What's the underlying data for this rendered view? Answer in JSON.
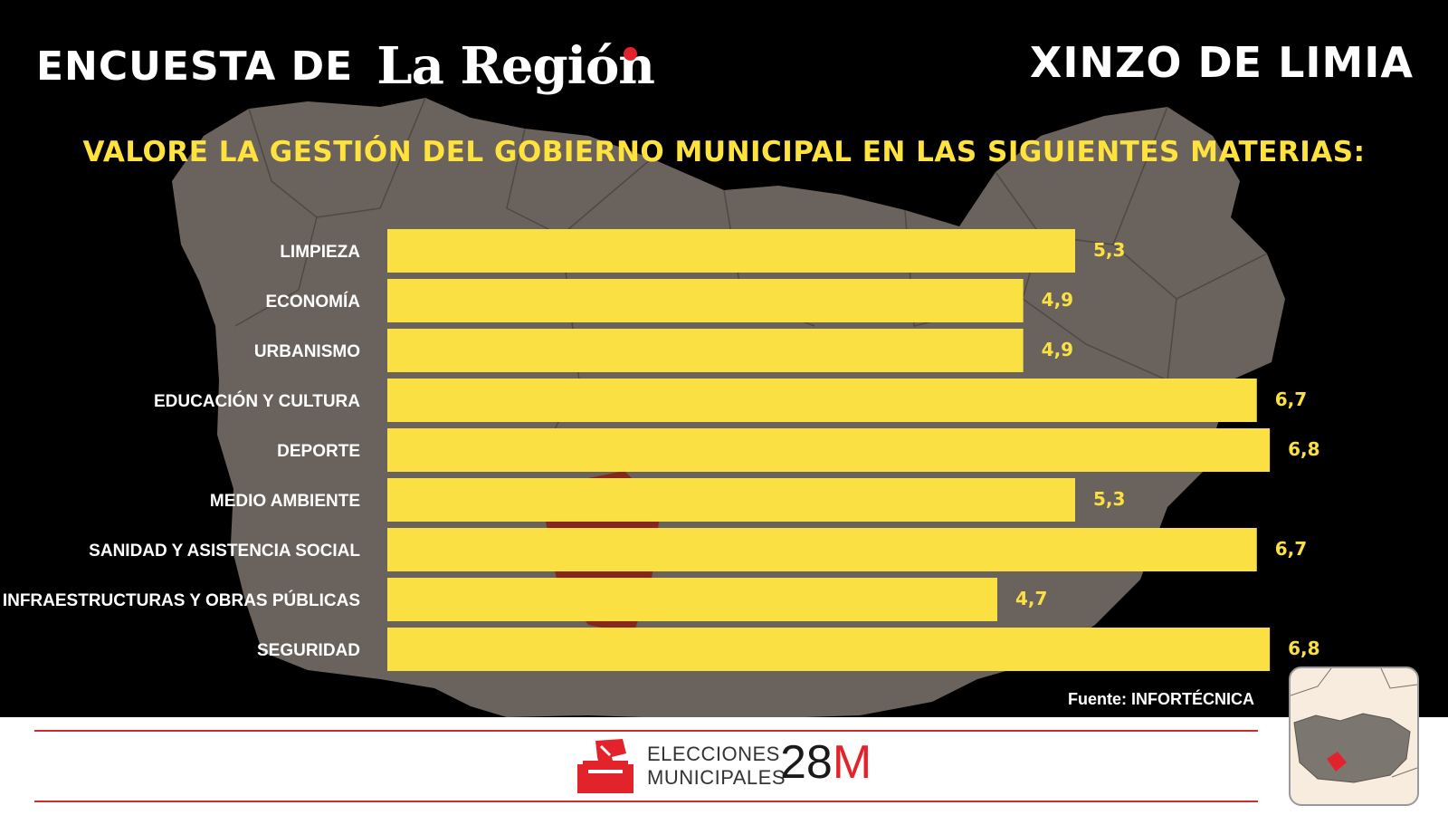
{
  "header": {
    "prefix": "ENCUESTA DE",
    "logo": "La Región",
    "location": "XINZO DE LIMIA"
  },
  "subtitle": "VALORE LA GESTIÓN DEL GOBIERNO MUNICIPAL EN LAS SIGUIENTES MATERIAS:",
  "chart_data": {
    "type": "bar",
    "orientation": "horizontal",
    "categories": [
      "LIMPIEZA",
      "ECONOMÍA",
      "URBANISMO",
      "EDUCACIÓN Y CULTURA",
      "DEPORTE",
      "MEDIO AMBIENTE",
      "SANIDAD Y ASISTENCIA SOCIAL",
      "INFRAESTRUCTURAS Y OBRAS PÚBLICAS",
      "SEGURIDAD"
    ],
    "values": [
      5.3,
      4.9,
      4.9,
      6.7,
      6.8,
      5.3,
      6.7,
      4.7,
      6.8
    ],
    "value_labels": [
      "5,3",
      "4,9",
      "4,9",
      "6,7",
      "6,8",
      "5,3",
      "6,7",
      "4,7",
      "6,8"
    ],
    "bar_color": "#fbe043",
    "label_color": "#fbe043",
    "grid": false
  },
  "source": "Fuente: INFORTÉCNICA",
  "footer": {
    "line1": "ELECCIONES",
    "line2": "MUNICIPALES",
    "date_number": "28",
    "date_letter": "M",
    "accent_color": "#e3232c"
  },
  "icons": {
    "ballot": "ballot-box-icon",
    "locator": "locator-map-icon"
  }
}
